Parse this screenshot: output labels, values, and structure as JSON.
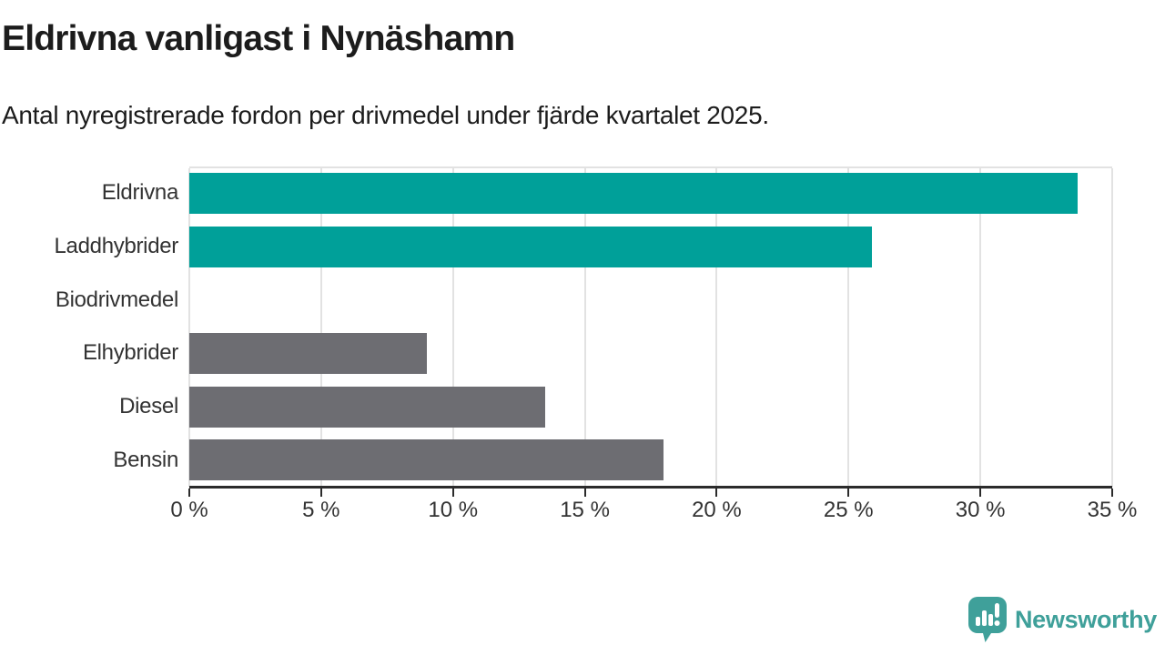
{
  "header": {
    "title": "Eldrivna vanligast i Nynäshamn",
    "subtitle": "Antal nyregistrerade fordon per drivmedel under fjärde kvartalet 2025."
  },
  "chart_data": {
    "type": "bar",
    "orientation": "horizontal",
    "title": "Eldrivna vanligast i Nynäshamn",
    "subtitle": "Antal nyregistrerade fordon per drivmedel under fjärde kvartalet 2025.",
    "categories": [
      "Eldrivna",
      "Laddhybrider",
      "Biodrivmedel",
      "Elhybrider",
      "Diesel",
      "Bensin"
    ],
    "values": [
      33.7,
      25.9,
      0,
      9,
      13.5,
      18
    ],
    "unit": "%",
    "bar_colors": [
      "#00a099",
      "#00a099",
      "#6d6d72",
      "#6d6d72",
      "#6d6d72",
      "#6d6d72"
    ],
    "xlim": [
      0,
      35
    ],
    "xticks": [
      0,
      5,
      10,
      15,
      20,
      25,
      30,
      35
    ],
    "xticklabels": [
      "0 %",
      "5 %",
      "10 %",
      "15 %",
      "20 %",
      "25 %",
      "30 %",
      "35 %"
    ],
    "grid": "vertical",
    "legend": "none"
  },
  "footer": {
    "brand": "Newsworthy",
    "logo_icon": "speech-bubble-bar-chart-icon"
  },
  "colors": {
    "accent_teal": "#00a099",
    "neutral_gray": "#6d6d72",
    "logo_teal": "#3fa09a",
    "axis": "#2b2b2b",
    "gridline": "#e2e2e2",
    "text_dark": "#1c1c1c",
    "text_label": "#333333"
  }
}
